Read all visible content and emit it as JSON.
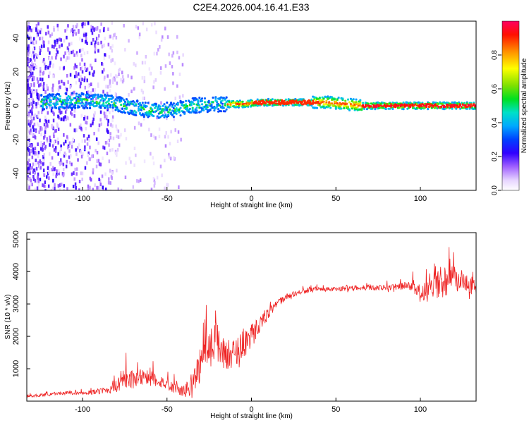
{
  "title": "C2E4.2026.004.16.41.E33",
  "chart_data": [
    {
      "type": "heatmap",
      "xlabel": "Height of straight line (km)",
      "ylabel": "Frequency (Hz)",
      "xlim": [
        -133,
        133
      ],
      "ylim": [
        -50,
        50
      ],
      "xticks": [
        -100,
        -50,
        0,
        50,
        100
      ],
      "yticks": [
        -40,
        -20,
        0,
        20,
        40
      ],
      "colorbar": {
        "label": "Normalized spectral amplitude",
        "range": [
          0,
          1
        ],
        "ticks": [
          0.0,
          0.2,
          0.4,
          0.6,
          0.8
        ],
        "colormap": [
          "#ffffff",
          "#e8d8ff",
          "#b080ff",
          "#6a00d8",
          "#0000ff",
          "#00aaff",
          "#00e0c0",
          "#00e000",
          "#a0e000",
          "#ffff00",
          "#ff9900",
          "#ff2000",
          "#ff0060"
        ]
      },
      "ridge": {
        "description_points_x": [
          -125,
          -110,
          -95,
          -85,
          -75,
          -65,
          -55,
          -45,
          -35,
          -25,
          -15,
          -5,
          5,
          15,
          30,
          45,
          55,
          65,
          80,
          95,
          110,
          125,
          133
        ],
        "frequency_hz": [
          2,
          3,
          3,
          2,
          0,
          -2,
          -3,
          -2,
          0,
          1,
          1,
          1,
          2,
          2,
          2,
          2,
          1,
          0,
          0,
          0,
          0,
          0,
          0
        ]
      }
    },
    {
      "type": "line",
      "xlabel": "Height of straight line (km)",
      "ylabel": "SNR (10 * v/v)",
      "xlim": [
        -133,
        133
      ],
      "ylim": [
        0,
        5200
      ],
      "xticks": [
        -100,
        -50,
        0,
        50,
        100
      ],
      "yticks": [
        1000,
        2000,
        3000,
        4000,
        5000
      ],
      "series": [
        {
          "color": "#ee2222",
          "x": [
            -133,
            -120,
            -110,
            -100,
            -90,
            -85,
            -80,
            -75,
            -70,
            -65,
            -60,
            -55,
            -50,
            -45,
            -40,
            -35,
            -30,
            -25,
            -20,
            -15,
            -10,
            -5,
            0,
            5,
            10,
            15,
            20,
            25,
            30,
            40,
            50,
            60,
            70,
            80,
            90,
            95,
            100,
            105,
            110,
            115,
            120,
            125,
            133
          ],
          "y": [
            150,
            200,
            250,
            250,
            300,
            350,
            450,
            600,
            700,
            800,
            700,
            650,
            500,
            400,
            300,
            500,
            1200,
            1700,
            1800,
            1400,
            1500,
            1800,
            2000,
            2400,
            2700,
            3000,
            3200,
            3300,
            3400,
            3450,
            3450,
            3500,
            3500,
            3500,
            3550,
            3550,
            3300,
            3400,
            3600,
            3700,
            3800,
            3700,
            3500
          ],
          "noise_amplitude": [
            60,
            80,
            80,
            80,
            150,
            200,
            350,
            500,
            450,
            500,
            400,
            350,
            300,
            250,
            300,
            700,
            900,
            1100,
            1000,
            800,
            700,
            800,
            700,
            400,
            300,
            200,
            150,
            150,
            150,
            120,
            120,
            120,
            130,
            130,
            200,
            250,
            500,
            600,
            700,
            800,
            700,
            600,
            500
          ]
        }
      ]
    }
  ]
}
